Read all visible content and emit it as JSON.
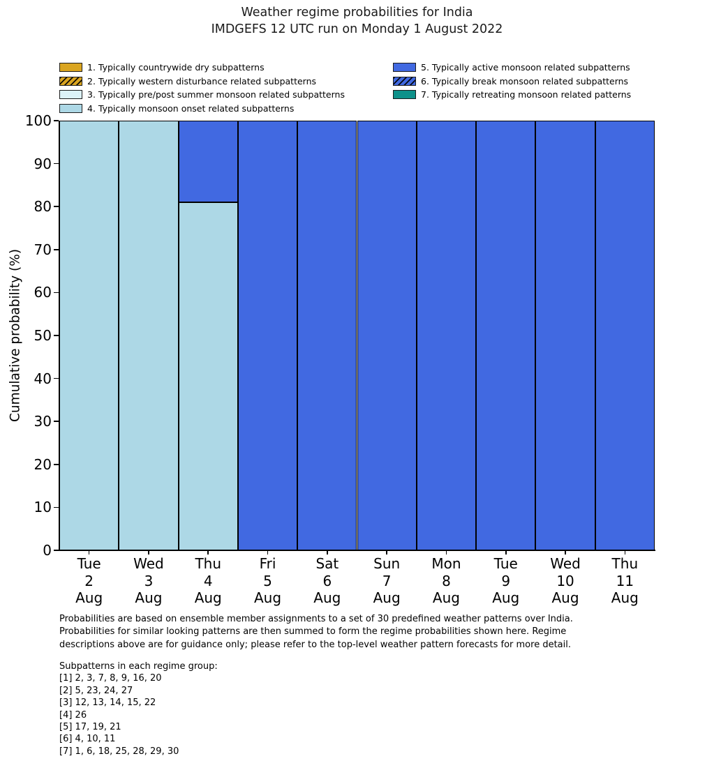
{
  "title": {
    "line1": "Weather regime probabilities for India",
    "line2": "IMDGEFS 12 UTC run on Monday 1 August 2022"
  },
  "chart_data": {
    "type": "bar",
    "stacked": true,
    "title": "Weather regime probabilities for India",
    "subtitle": "IMDGEFS 12 UTC run on Monday 1 August 2022",
    "xlabel": "",
    "ylabel": "Cumulative probability (%)",
    "ylim": [
      0,
      100
    ],
    "yticks": [
      0,
      10,
      20,
      30,
      40,
      50,
      60,
      70,
      80,
      90,
      100
    ],
    "grid": false,
    "bar_edge_color": "#000000",
    "legend_position": "above plot, two columns",
    "categories": [
      "Tue 2 Aug",
      "Wed 3 Aug",
      "Thu 4 Aug",
      "Fri 5 Aug",
      "Sat 6 Aug",
      "Sun 7 Aug",
      "Mon 8 Aug",
      "Tue 9 Aug",
      "Wed 10 Aug",
      "Thu 11 Aug"
    ],
    "xtick_lines": [
      [
        "Tue",
        "2",
        "Aug"
      ],
      [
        "Wed",
        "3",
        "Aug"
      ],
      [
        "Thu",
        "4",
        "Aug"
      ],
      [
        "Fri",
        "5",
        "Aug"
      ],
      [
        "Sat",
        "6",
        "Aug"
      ],
      [
        "Sun",
        "7",
        "Aug"
      ],
      [
        "Mon",
        "8",
        "Aug"
      ],
      [
        "Tue",
        "9",
        "Aug"
      ],
      [
        "Wed",
        "10",
        "Aug"
      ],
      [
        "Thu",
        "11",
        "Aug"
      ]
    ],
    "series": [
      {
        "name": "1. Typically countrywide dry subpatterns",
        "color": "#DAA520",
        "hatch": false,
        "values": [
          0,
          0,
          0,
          0,
          0,
          0,
          0,
          0,
          0,
          0
        ]
      },
      {
        "name": "2. Typically western disturbance related subpatterns",
        "color": "#DAA520",
        "hatch": true,
        "values": [
          0,
          0,
          0,
          0,
          0,
          0,
          0,
          0,
          0,
          0
        ]
      },
      {
        "name": "3. Typically pre/post summer monsoon related subpatterns",
        "color": "#DCF2F8",
        "hatch": false,
        "values": [
          0,
          0,
          0,
          0,
          0,
          0,
          0,
          0,
          0,
          0
        ]
      },
      {
        "name": "4. Typically monsoon onset related subpatterns",
        "color": "#ADD8E6",
        "hatch": false,
        "values": [
          100,
          100,
          81,
          0,
          0,
          0,
          0,
          0,
          0,
          0
        ]
      },
      {
        "name": "5. Typically active monsoon related subpatterns",
        "color": "#4169E1",
        "hatch": false,
        "values": [
          0,
          0,
          19,
          100,
          100,
          100,
          100,
          100,
          100,
          100
        ]
      },
      {
        "name": "6. Typically break monsoon related subpatterns",
        "color": "#4169E1",
        "hatch": true,
        "values": [
          0,
          0,
          0,
          0,
          0,
          0,
          0,
          0,
          0,
          0
        ]
      },
      {
        "name": "7. Typically retreating monsoon related patterns",
        "color": "#0E918A",
        "hatch": false,
        "values": [
          0,
          0,
          0,
          0,
          0,
          0,
          0,
          0,
          0,
          0
        ]
      }
    ]
  },
  "footer": {
    "lines": [
      "Probabilities are based on ensemble member assignments to a set of 30 predefined weather patterns over India.",
      "Probabilities for similar looking patterns are then summed to form the regime probabilities shown here. Regime",
      "descriptions above are for guidance only; please refer to the top-level weather pattern forecasts for more detail."
    ]
  },
  "subpatterns": {
    "heading": "Subpatterns in each regime group:",
    "lines": [
      "[1] 2, 3, 7, 8, 9, 16, 20",
      "[2] 5, 23, 24, 27",
      "[3] 12, 13, 14, 15, 22",
      "[4] 26",
      "[5] 17, 19, 21",
      "[6] 4, 10, 11",
      "[7] 1, 6, 18, 25, 28, 29, 30"
    ]
  }
}
